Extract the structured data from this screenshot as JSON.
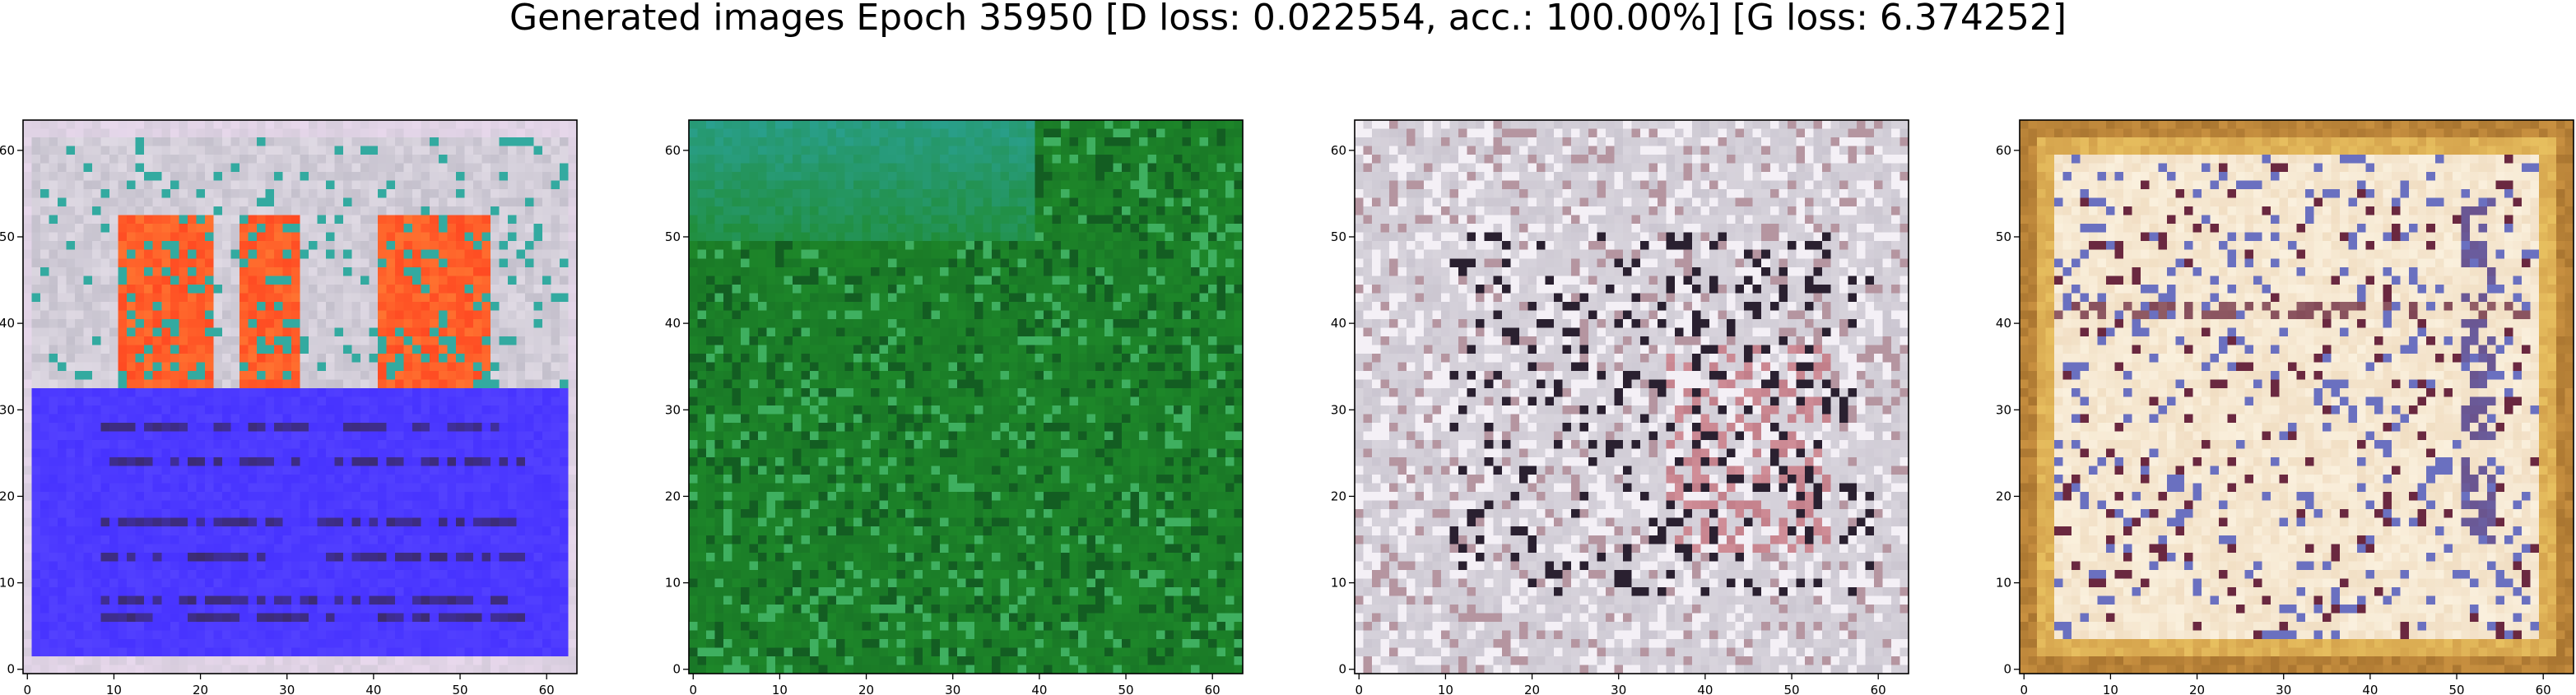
{
  "figure": {
    "title": "Generated images Epoch 35950 [D loss: 0.022554, acc.: 100.00%] [G loss: 6.374252]"
  },
  "chart_data": [
    {
      "type": "heatmap",
      "title": "",
      "xlabel": "",
      "ylabel": "",
      "xlim": [
        -0.5,
        63.5
      ],
      "ylim": [
        63.5,
        -0.5
      ],
      "xticks": [
        0,
        10,
        20,
        30,
        40,
        50,
        60
      ],
      "yticks": [
        0,
        10,
        20,
        30,
        40,
        50,
        60
      ],
      "grid": false,
      "palette": {
        "background": "#c4c0cc",
        "border": "#e8d8ec",
        "orange": "#ff4a22",
        "blue": "#4733ff",
        "dark": "#3a2a5a",
        "teal": "#33aaa0"
      }
    },
    {
      "type": "heatmap",
      "title": "",
      "xlabel": "",
      "ylabel": "",
      "xlim": [
        -0.5,
        63.5
      ],
      "ylim": [
        63.5,
        -0.5
      ],
      "xticks": [
        0,
        10,
        20,
        30,
        40,
        50,
        60
      ],
      "yticks": [
        0,
        10,
        20,
        30,
        40,
        50,
        60
      ],
      "grid": false,
      "palette": {
        "background": "#1e8a2a",
        "teal": "#2aa090",
        "dark": "#0e4a1e",
        "light": "#3fb060"
      }
    },
    {
      "type": "heatmap",
      "title": "",
      "xlabel": "",
      "ylabel": "",
      "xlim": [
        -0.5,
        63.5
      ],
      "ylim": [
        63.5,
        -0.5
      ],
      "xticks": [
        0,
        10,
        20,
        30,
        40,
        50,
        60
      ],
      "yticks": [
        0,
        10,
        20,
        30,
        40,
        50,
        60
      ],
      "grid": false,
      "palette": {
        "background": "#dcd8e0",
        "light": "#f4f0f6",
        "dark": "#2a2030",
        "pink": "#e8a8b0",
        "maroon": "#7a3040"
      }
    },
    {
      "type": "heatmap",
      "title": "",
      "xlabel": "",
      "ylabel": "",
      "xlim": [
        -0.5,
        63.5
      ],
      "ylim": [
        63.5,
        -0.5
      ],
      "xticks": [
        0,
        10,
        20,
        30,
        40,
        50,
        60
      ],
      "yticks": [
        0,
        10,
        20,
        30,
        40,
        50,
        60
      ],
      "grid": false,
      "palette": {
        "background": "#f0dcc0",
        "border": "#c89040",
        "yellow": "#e8c060",
        "dark": "#6a2840",
        "blue": "#6a70c0"
      }
    }
  ]
}
